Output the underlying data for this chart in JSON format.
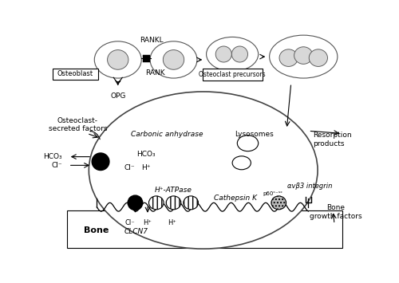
{
  "background_color": "#ffffff",
  "labels": {
    "osteoblast": "Osteoblast",
    "rankl": "RANKL",
    "rank": "RANK",
    "opg": "OPG",
    "osteoclast_precursors": "Osteoclast precursors",
    "carbonic_anhydrase": "Carbonic anhydrase",
    "lysosomes": "Lysosomes",
    "hco3_left": "HCO₃",
    "cl_left": "Cl⁻",
    "hco3_right": "HCO₃",
    "cl_right": "Cl⁻",
    "h_right": "H⁺",
    "h_atpase": "H⁺-ATPase",
    "cl_down": "Cl⁻",
    "h_down": "H⁺",
    "clcn7": "CLCN7",
    "h_down2": "H⁺",
    "cathepsin_k": "Cathepsin K",
    "p60": "p60ᶜ⁻ˢᶜ",
    "avb3_integrin": "αvβ3 integrin",
    "resorption_products": "Resorption\nproducts",
    "bone_growth_factors": "Bone\ngrowth factors",
    "osteoclast_secreted": "Osteoclast-\nsecreted factors",
    "bone": "Bone"
  },
  "figsize": [
    5.0,
    3.55
  ],
  "dpi": 100
}
